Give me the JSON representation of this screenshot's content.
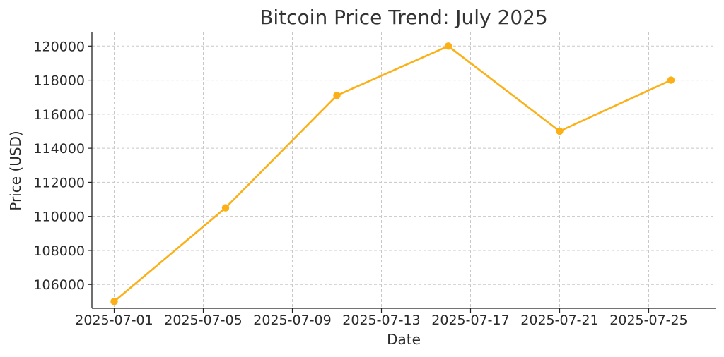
{
  "chart_data": {
    "type": "line",
    "title": "Bitcoin Price Trend: July 2025",
    "xlabel": "Date",
    "ylabel": "Price (USD)",
    "x_ticks": [
      "2025-07-01",
      "2025-07-05",
      "2025-07-09",
      "2025-07-13",
      "2025-07-17",
      "2025-07-21",
      "2025-07-25"
    ],
    "y_ticks": [
      106000,
      108000,
      110000,
      112000,
      114000,
      116000,
      118000,
      120000
    ],
    "xlim": [
      "2025-06-30",
      "2025-07-28"
    ],
    "ylim": [
      104600,
      120800
    ],
    "grid": true,
    "series": [
      {
        "color": "#fbb016",
        "marker": "circle",
        "x": [
          "2025-07-01",
          "2025-07-06",
          "2025-07-11",
          "2025-07-16",
          "2025-07-21",
          "2025-07-26"
        ],
        "values": [
          105000,
          110500,
          117100,
          120000,
          115000,
          118000
        ]
      }
    ]
  }
}
